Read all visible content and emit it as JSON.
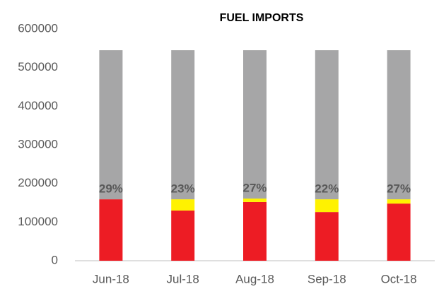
{
  "chart_data": {
    "type": "stacked_bar",
    "title": "FUEL IMPORTS",
    "categories": [
      "Jun-18",
      "Jul-18",
      "Aug-18",
      "Sep-18",
      "Oct-18"
    ],
    "series": [
      {
        "color": "#ed1c24",
        "values": [
          159000,
          130000,
          152000,
          126000,
          148000
        ]
      },
      {
        "color": "#fff200",
        "values": [
          0,
          29000,
          9000,
          33000,
          11000
        ]
      },
      {
        "color": "#a6a6a7",
        "values": [
          386000,
          386000,
          384000,
          386000,
          386000
        ]
      }
    ],
    "annotations": [
      "29%",
      "23%",
      "27%",
      "22%",
      "27%"
    ],
    "ylim": [
      0,
      600000
    ],
    "yticks": [
      0,
      100000,
      200000,
      300000,
      400000,
      500000,
      600000
    ],
    "grid": false
  }
}
